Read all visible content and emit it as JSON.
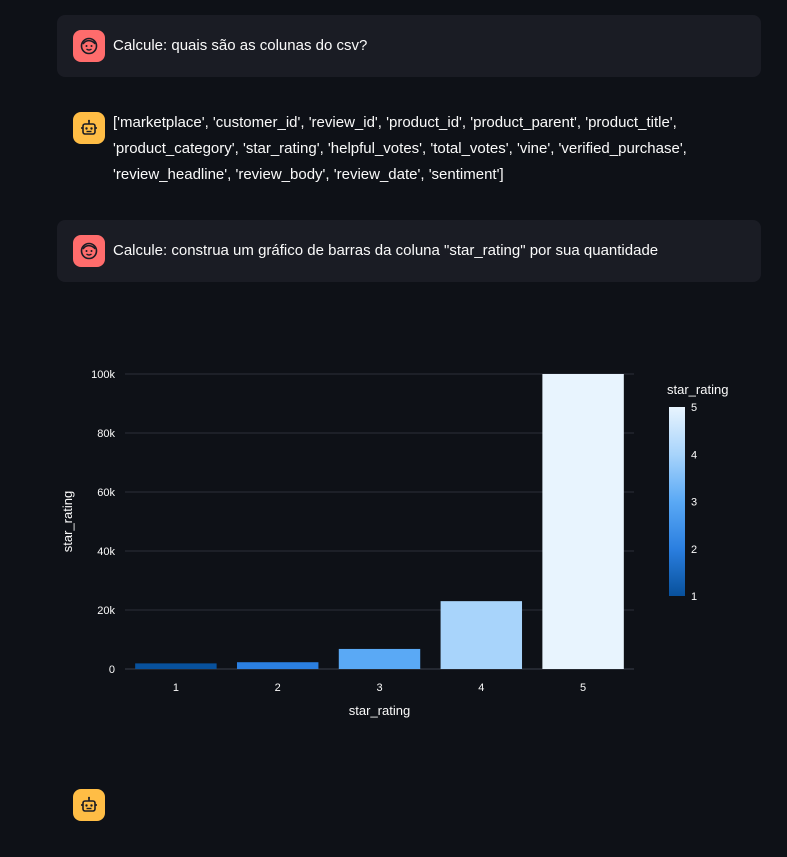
{
  "messages": [
    {
      "role": "user",
      "avatar_icon": "user-face-icon",
      "text": "Calcule: quais são as colunas do csv?"
    },
    {
      "role": "assistant",
      "avatar_icon": "robot-icon",
      "text": "['marketplace', 'customer_id', 'review_id', 'product_id', 'product_parent', 'product_title', 'product_category', 'star_rating', 'helpful_votes', 'total_votes', 'vine', 'verified_purchase', 'review_headline', 'review_body', 'review_date', 'sentiment']"
    },
    {
      "role": "user",
      "avatar_icon": "user-face-icon",
      "text": "Calcule: construa um gráfico de barras da coluna \"star_rating\" por sua quantidade"
    },
    {
      "role": "assistant",
      "avatar_icon": "robot-icon",
      "text": ""
    }
  ],
  "chart_data": {
    "type": "bar",
    "categories": [
      "1",
      "2",
      "3",
      "4",
      "5"
    ],
    "values": [
      1900,
      2300,
      6800,
      23000,
      100000
    ],
    "color_values": [
      1,
      2,
      3,
      4,
      5
    ],
    "xlabel": "star_rating",
    "ylabel": "star_rating",
    "ylim": [
      0,
      100000
    ],
    "yticks": [
      0,
      20000,
      40000,
      60000,
      80000,
      100000
    ],
    "ytick_labels": [
      "0",
      "20k",
      "40k",
      "60k",
      "80k",
      "100k"
    ],
    "colorbar": {
      "title": "star_rating",
      "range": [
        1,
        5
      ],
      "ticks": [
        "1",
        "2",
        "3",
        "4",
        "5"
      ],
      "colors": [
        "#08519c",
        "#2b7fe0",
        "#5aa9f5",
        "#a8d4fb",
        "#e8f4fe"
      ]
    },
    "grid": true,
    "legend": "colorbar-right"
  }
}
